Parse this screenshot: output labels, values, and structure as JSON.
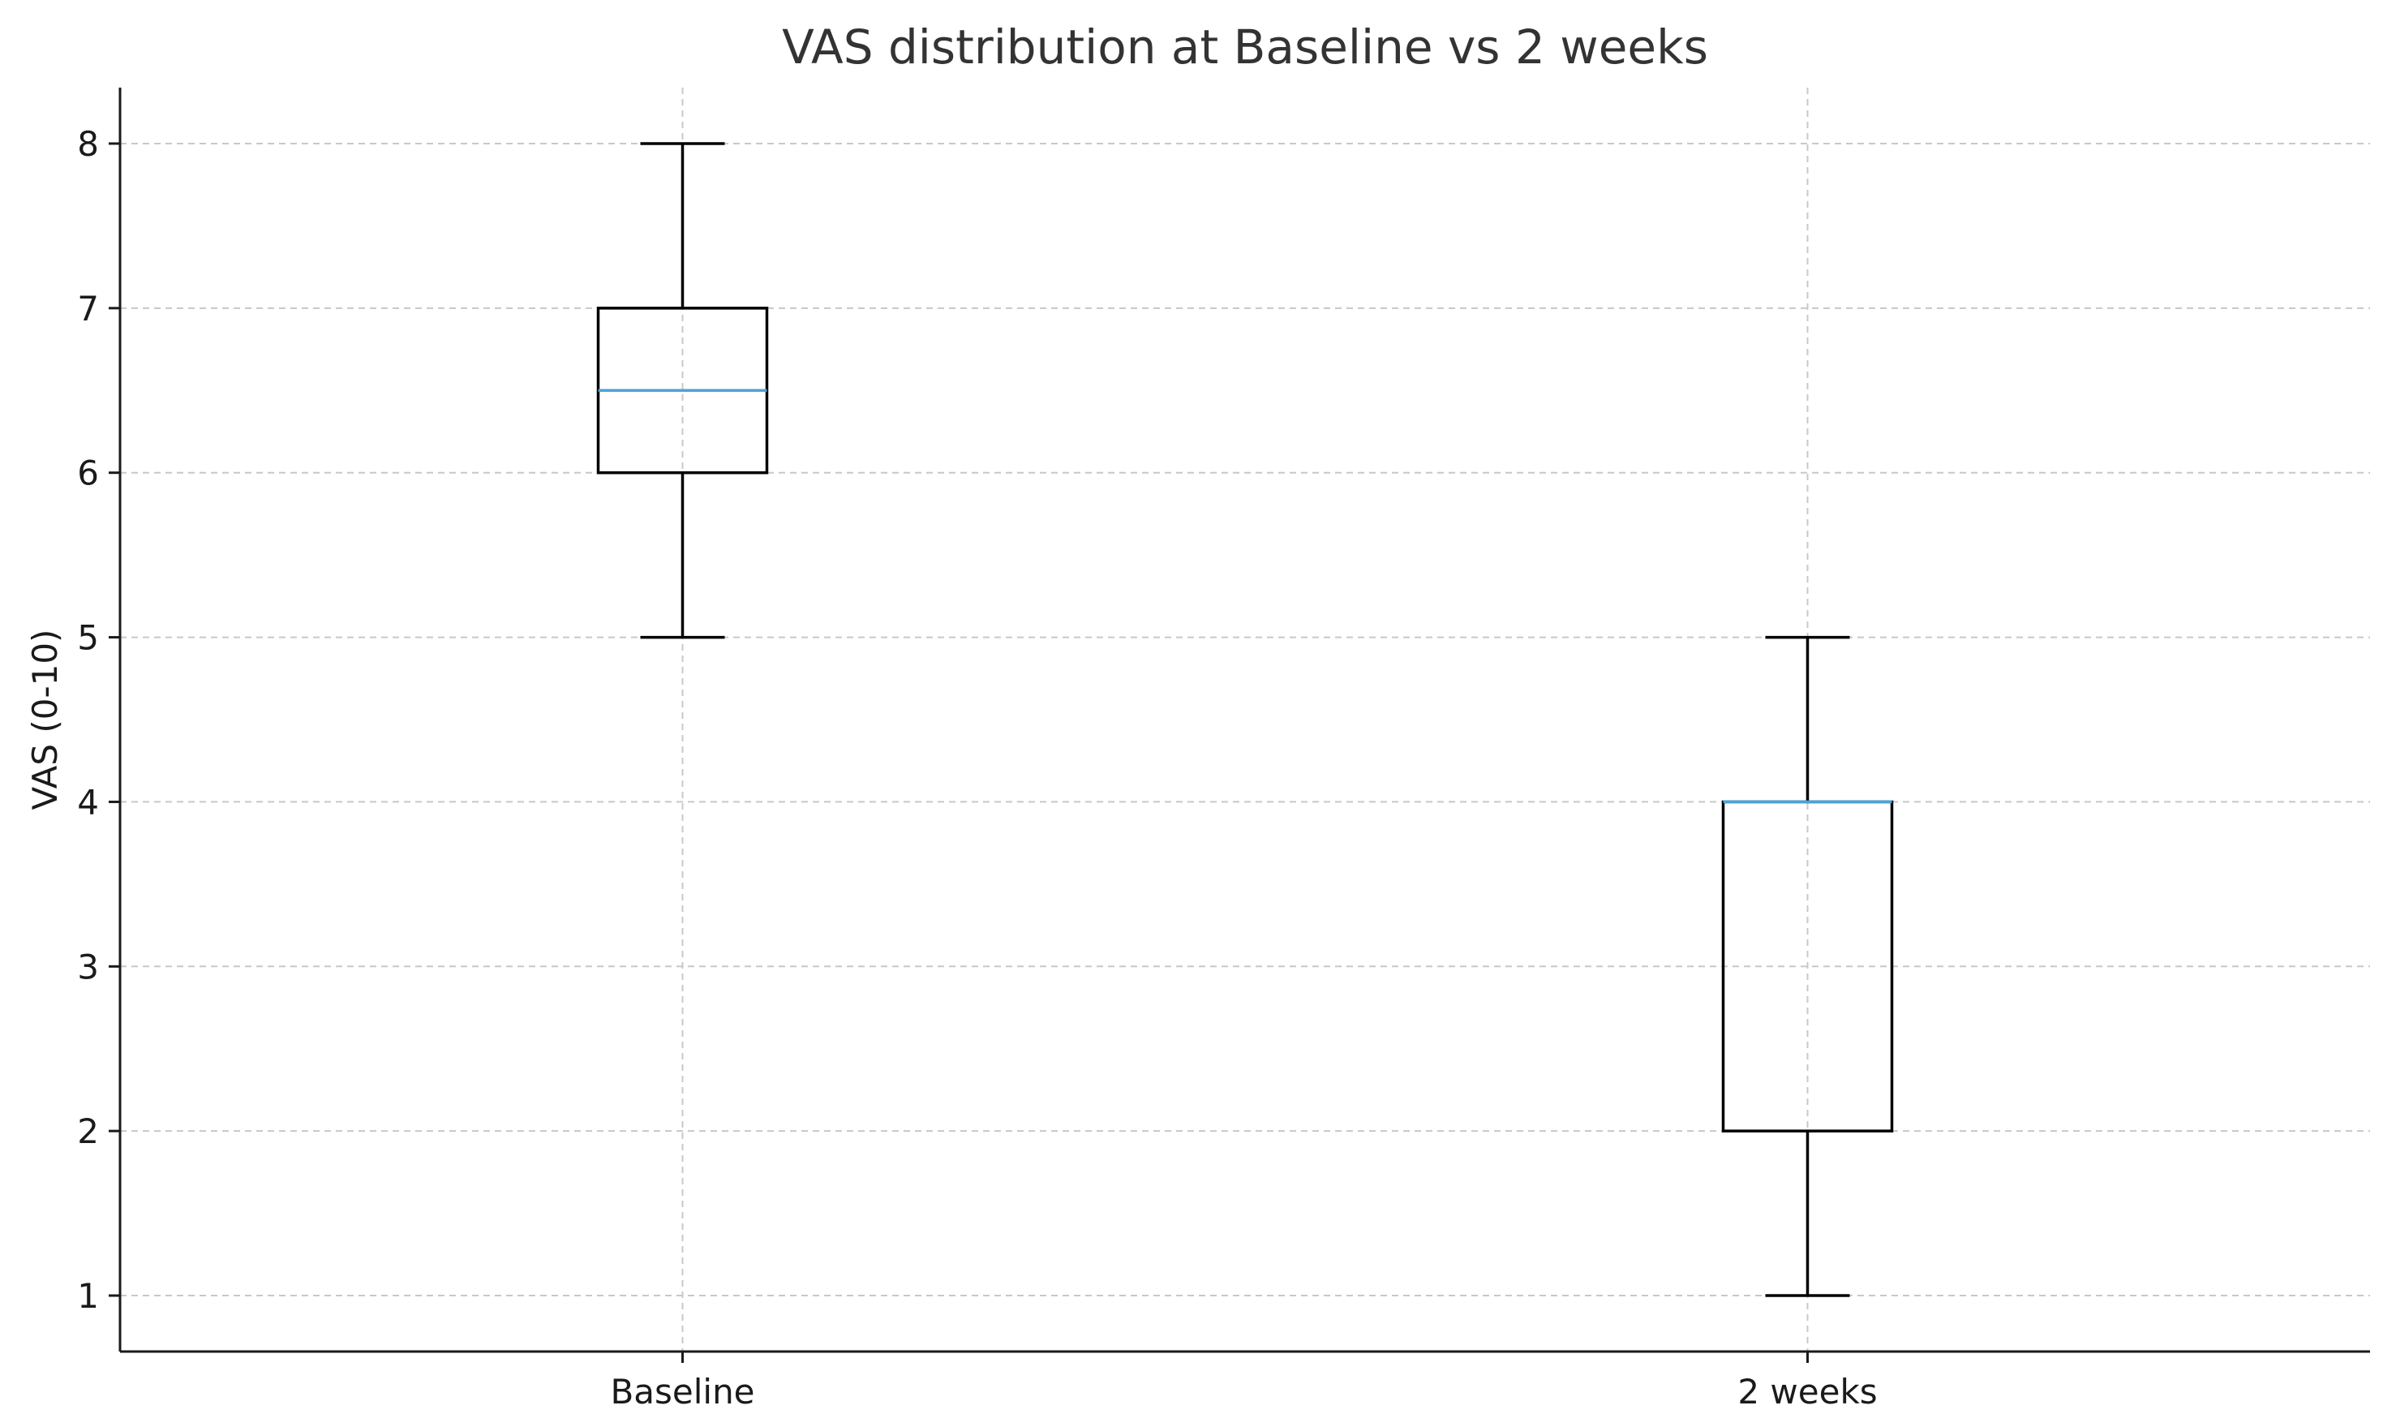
{
  "chart_data": {
    "type": "box",
    "title": "VAS distribution at Baseline vs 2 weeks",
    "xlabel": "",
    "ylabel": "VAS (0-10)",
    "ylim": [
      0.66,
      8.34
    ],
    "yticks": [
      1,
      2,
      3,
      4,
      5,
      6,
      7,
      8
    ],
    "grid": true,
    "categories": [
      "Baseline",
      "2 weeks"
    ],
    "series": [
      {
        "name": "Baseline",
        "whisker_low": 5,
        "q1": 6,
        "median": 6.5,
        "q3": 7,
        "whisker_high": 8
      },
      {
        "name": "2 weeks",
        "whisker_low": 1,
        "q1": 2,
        "median": 4,
        "q3": 4,
        "whisker_high": 5
      }
    ],
    "colors": {
      "median": "#4aa3d9",
      "box": "#000000"
    }
  }
}
